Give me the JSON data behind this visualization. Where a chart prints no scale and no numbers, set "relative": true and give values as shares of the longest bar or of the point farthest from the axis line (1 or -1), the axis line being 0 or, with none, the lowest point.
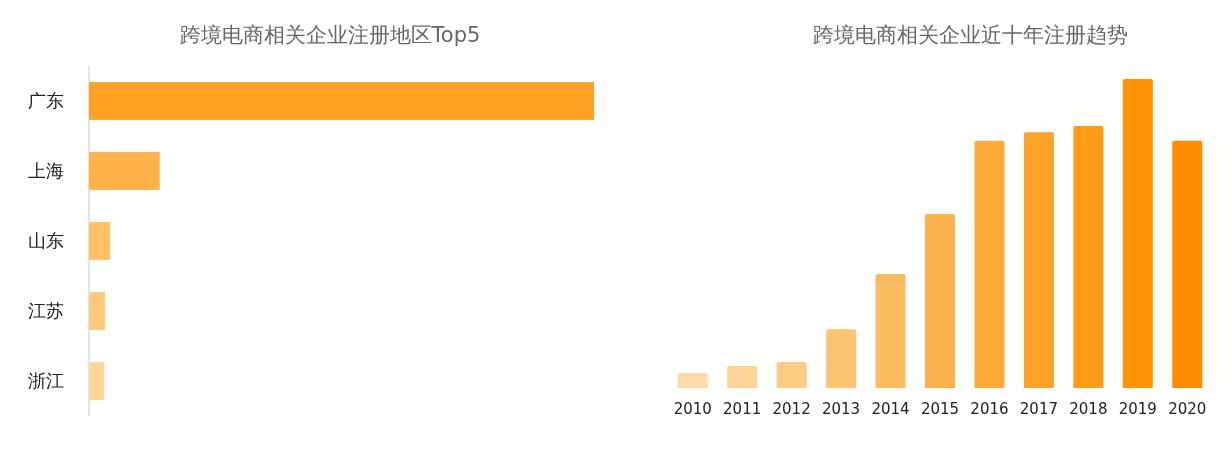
{
  "chart_data": [
    {
      "type": "bar",
      "title": "跨境电商相关企业注册地区Top5",
      "orientation": "horizontal",
      "relative": true,
      "categories": [
        "广东",
        "上海",
        "山东",
        "江苏",
        "浙江"
      ],
      "values": [
        1,
        0.14,
        0.042,
        0.032,
        0.03
      ],
      "colors": [
        "#ffa224",
        "#ffb24a",
        "#ffc064",
        "#ffca7a",
        "#fdd596"
      ]
    },
    {
      "type": "bar",
      "title": "跨境电商相关企业近十年注册趋势",
      "relative": true,
      "categories": [
        "2010",
        "2011",
        "2012",
        "2013",
        "2014",
        "2015",
        "2016",
        "2017",
        "2018",
        "2019",
        "2020"
      ],
      "values": [
        0.049,
        0.071,
        0.084,
        0.19,
        0.369,
        0.563,
        0.8,
        0.828,
        0.848,
        1,
        0.8
      ],
      "colors": [
        "#fddcaa",
        "#fdd497",
        "#fdcc85",
        "#fdc472",
        "#fdbb60",
        "#fdb34d",
        "#feab3b",
        "#fea329",
        "#ff9b16",
        "#ff9304",
        "#ff8c00"
      ]
    }
  ]
}
